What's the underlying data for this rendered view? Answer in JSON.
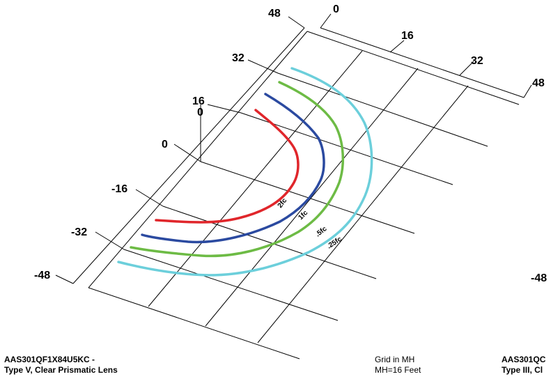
{
  "diagram": {
    "axis_left_ticks": [
      "48",
      "32",
      "16",
      "0",
      "-16",
      "-32",
      "-48"
    ],
    "axis_top_ticks": [
      "0",
      "16",
      "32",
      "48"
    ],
    "axis_right_cut_tick": "-48",
    "origin_marker": "0",
    "contours": [
      {
        "label": "2fc",
        "color": "#e0262b"
      },
      {
        "label": "1fc",
        "color": "#2b4aa0"
      },
      {
        "label": ".5fc",
        "color": "#6dbb45"
      },
      {
        "label": ".25fc",
        "color": "#6ccfdb"
      }
    ]
  },
  "captions": {
    "left_line1": "AAS301QF1X84U5KC -",
    "left_line2": "Type V, Clear Prismatic Lens",
    "center_line1": "Grid in MH",
    "center_line2": "MH=16 Feet",
    "right_line1": "AAS301QC",
    "right_line2": "Type III, Cl"
  }
}
